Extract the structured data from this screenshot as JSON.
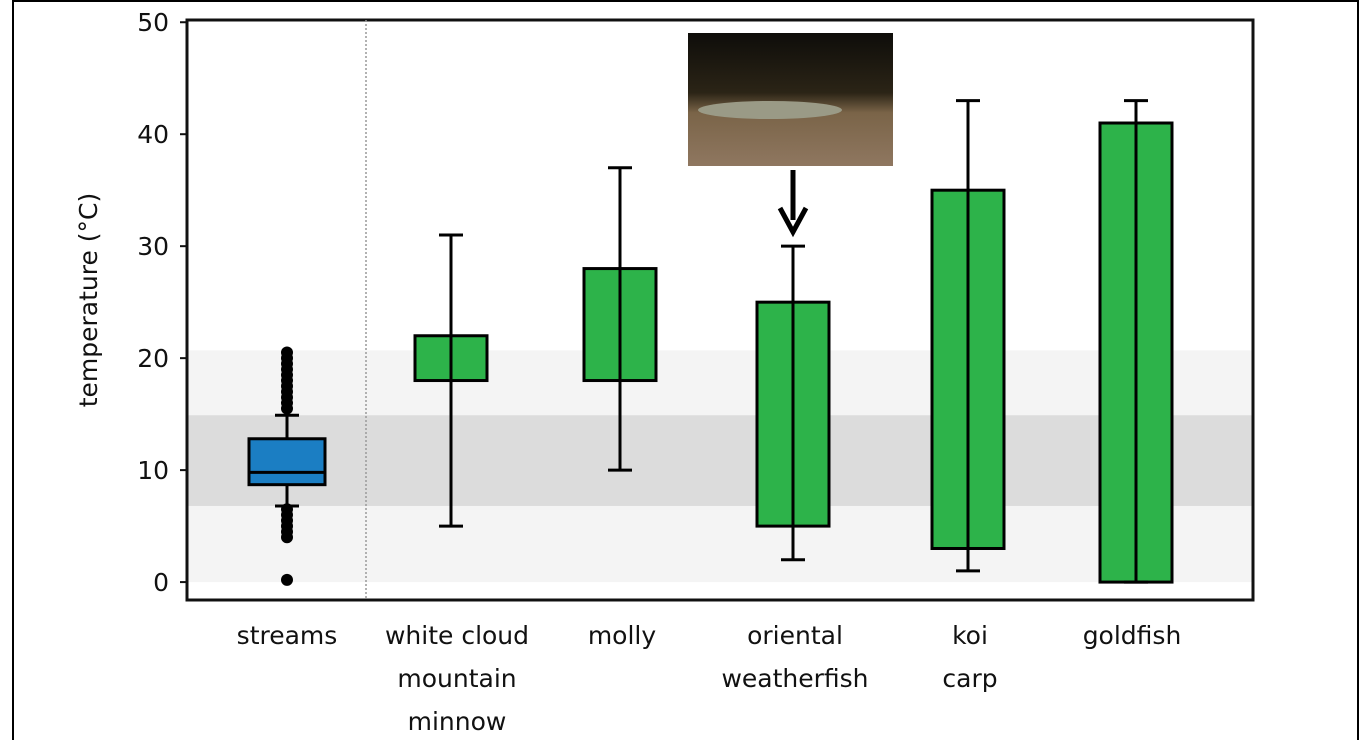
{
  "chart_data": {
    "type": "box",
    "y_label": "temperature (°C)",
    "ylim": [
      -1.6,
      50.2
    ],
    "yticks": [
      0,
      10,
      20,
      30,
      40,
      50
    ],
    "categories": [
      [
        "streams"
      ],
      [
        "white cloud",
        "mountain",
        "minnow"
      ],
      [
        "molly"
      ],
      [
        "oriental",
        "weatherfish"
      ],
      [
        "koi",
        "carp"
      ],
      [
        "goldfish"
      ]
    ],
    "boxes": [
      {
        "low": 6.8,
        "q1": 8.7,
        "median": 9.8,
        "q3": 12.8,
        "high": 14.9,
        "color": "#1b7ec3",
        "outliers": [
          15.5,
          16.0,
          16.5,
          17.0,
          17.5,
          18.0,
          18.5,
          19.0,
          19.5,
          20.0,
          20.5,
          6.5,
          6.0,
          5.5,
          5.0,
          4.5,
          4.0,
          0.2
        ]
      },
      {
        "low": 5,
        "q1": 18,
        "q3": 22,
        "high": 31,
        "color": "#2db34a"
      },
      {
        "low": 10,
        "q1": 18,
        "q3": 28,
        "high": 37,
        "color": "#2db34a"
      },
      {
        "low": 2,
        "q1": 5,
        "q3": 25,
        "high": 30,
        "color": "#2db34a"
      },
      {
        "low": 1,
        "q1": 3,
        "q3": 35,
        "high": 43,
        "color": "#2db34a"
      },
      {
        "low": 0,
        "q1": 0,
        "q3": 41,
        "high": 43,
        "color": "#2db34a"
      }
    ],
    "bands": [
      {
        "lower": 0,
        "upper": 20.7,
        "color": "#f4f4f4"
      },
      {
        "lower": 6.8,
        "upper": 14.9,
        "color": "#dcdcdc"
      }
    ]
  }
}
